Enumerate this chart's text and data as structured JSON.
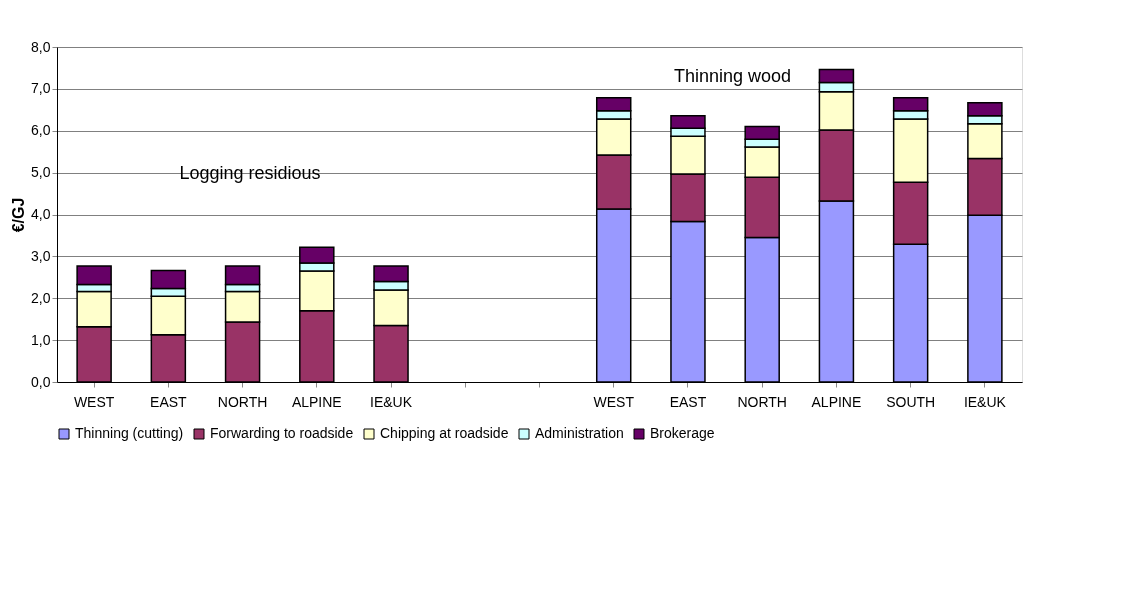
{
  "chart_data": {
    "type": "bar",
    "stacked": true,
    "ylabel": "€/GJ",
    "categories": [
      "WEST",
      "EAST",
      "NORTH",
      "ALPINE",
      "IE&UK",
      null,
      null,
      "WEST",
      "EAST",
      "NORTH",
      "ALPINE",
      "SOUTH",
      "IE&UK"
    ],
    "series": [
      {
        "name": "Thinning (cutting)",
        "color": "#9999ff",
        "values": [
          null,
          null,
          null,
          null,
          null,
          null,
          null,
          4.13,
          3.83,
          3.45,
          4.32,
          3.29,
          3.98
        ]
      },
      {
        "name": "Forwarding to roadside",
        "color": "#993366",
        "values": [
          1.32,
          1.13,
          1.43,
          1.7,
          1.35,
          null,
          null,
          1.29,
          1.14,
          1.44,
          1.7,
          1.48,
          1.36
        ]
      },
      {
        "name": "Chipping at roadside",
        "color": "#ffffcc",
        "values": [
          0.84,
          0.92,
          0.73,
          0.95,
          0.85,
          null,
          null,
          0.86,
          0.9,
          0.72,
          0.91,
          1.51,
          0.83
        ]
      },
      {
        "name": "Administration",
        "color": "#ccffff",
        "values": [
          0.17,
          0.18,
          0.17,
          0.19,
          0.2,
          null,
          null,
          0.2,
          0.19,
          0.19,
          0.22,
          0.2,
          0.19
        ]
      },
      {
        "name": "Brokerage",
        "color": "#660066",
        "values": [
          0.44,
          0.43,
          0.44,
          0.38,
          0.37,
          null,
          null,
          0.31,
          0.3,
          0.3,
          0.31,
          0.31,
          0.31
        ]
      }
    ],
    "ylim": [
      0,
      8
    ],
    "yticks": [
      {
        "value": 0,
        "label": "0,0"
      },
      {
        "value": 1,
        "label": "1,0"
      },
      {
        "value": 2,
        "label": "2,0"
      },
      {
        "value": 3,
        "label": "3,0"
      },
      {
        "value": 4,
        "label": "4,0"
      },
      {
        "value": 5,
        "label": "5,0"
      },
      {
        "value": 6,
        "label": "6,0"
      },
      {
        "value": 7,
        "label": "7,0"
      },
      {
        "value": 8,
        "label": "8,0"
      }
    ],
    "annotations": [
      "Logging residious",
      "Thinning wood"
    ],
    "grid": "y",
    "legend": "bottom"
  }
}
